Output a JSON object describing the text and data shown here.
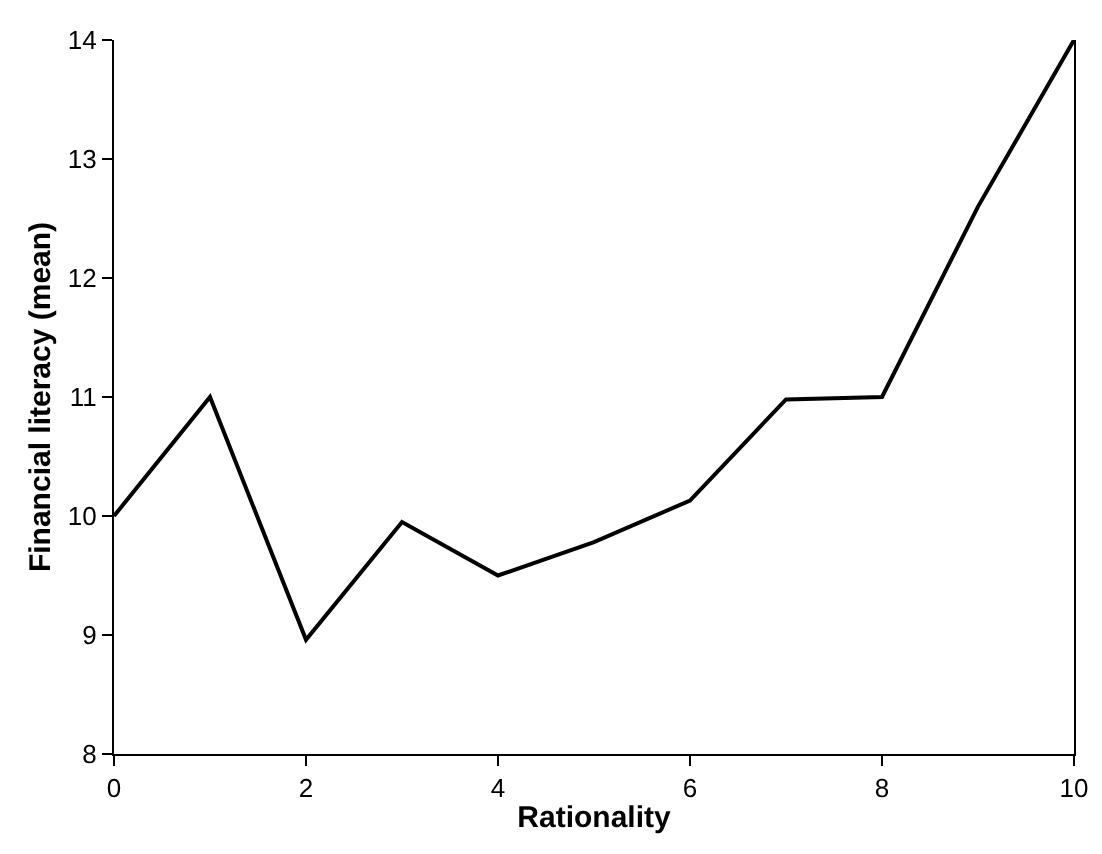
{
  "chart_data": {
    "type": "line",
    "xlabel": "Rationality",
    "ylabel": "Financial literacy (mean)",
    "x": [
      0,
      1,
      2,
      3,
      4,
      5,
      6,
      7,
      8,
      9,
      10
    ],
    "series": [
      {
        "color": "#000000",
        "values": [
          10.0,
          11.0,
          8.96,
          9.95,
          9.5,
          9.78,
          10.13,
          10.98,
          11.0,
          12.6,
          14.0
        ]
      }
    ],
    "xlim": [
      0,
      10
    ],
    "xticks": [
      0,
      2,
      4,
      6,
      8,
      10
    ],
    "ylim": [
      8,
      14
    ],
    "yticks": [
      8,
      9,
      10,
      11,
      12,
      13,
      14
    ],
    "grid": false,
    "legend": false,
    "marker": "none",
    "line_style": "solid"
  }
}
